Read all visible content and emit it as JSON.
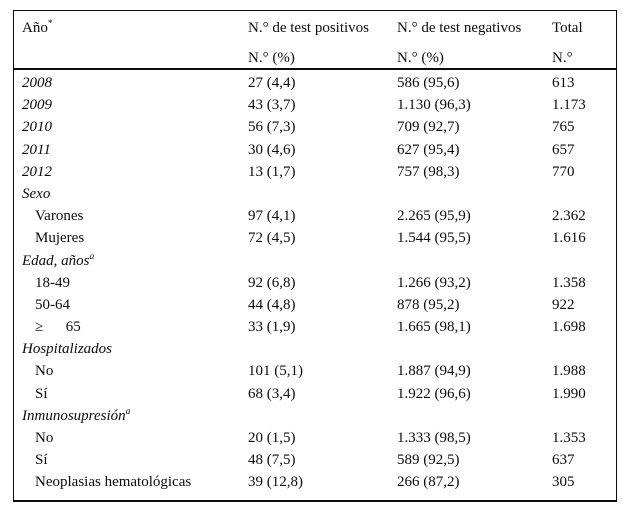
{
  "table": {
    "header": {
      "col1": {
        "line1": "Año",
        "sup": "*"
      },
      "col2": {
        "line1": "N.° de test positivos",
        "line2": "N.° (%)"
      },
      "col3": {
        "line1": "N.° de test negativos",
        "line2": "N.° (%)"
      },
      "col4": {
        "line1": "Total",
        "line2": "N.°"
      }
    },
    "rows": [
      {
        "label": "2008",
        "italic": true,
        "positives": "27 (4,4)",
        "negatives": "586 (95,6)",
        "total": "613"
      },
      {
        "label": "2009",
        "italic": true,
        "positives": "43 (3,7)",
        "negatives": "1.130 (96,3)",
        "total": "1.173"
      },
      {
        "label": "2010",
        "italic": true,
        "positives": "56 (7,3)",
        "negatives": "709 (92,7)",
        "total": "765"
      },
      {
        "label": "2011",
        "italic": true,
        "positives": "30 (4,6)",
        "negatives": "627 (95,4)",
        "total": "657"
      },
      {
        "label": "2012",
        "italic": true,
        "positives": "13 (1,7)",
        "negatives": "757 (98,3)",
        "total": "770"
      },
      {
        "label": "Sexo",
        "section": true
      },
      {
        "label": "Varones",
        "indent": true,
        "positives": "97 (4,1)",
        "negatives": "2.265 (95,9)",
        "total": "2.362"
      },
      {
        "label": "Mujeres",
        "indent": true,
        "positives": "72 (4,5)",
        "negatives": "1.544 (95,5)",
        "total": "1.616"
      },
      {
        "label": "Edad, años",
        "sup": "a",
        "section": true
      },
      {
        "label": "18-49",
        "indent": true,
        "positives": "92 (6,8)",
        "negatives": "1.266 (93,2)",
        "total": "1.358"
      },
      {
        "label": "50-64",
        "indent": true,
        "positives": "44 (4,8)",
        "negatives": "878 (95,2)",
        "total": "922"
      },
      {
        "label": "≥      65",
        "indent": true,
        "positives": "33 (1,9)",
        "negatives": "1.665 (98,1)",
        "total": "1.698"
      },
      {
        "label": "Hospitalizados",
        "section": true
      },
      {
        "label": "No",
        "indent": true,
        "positives": "101 (5,1)",
        "negatives": "1.887 (94,9)",
        "total": "1.988"
      },
      {
        "label": "Sí",
        "indent": true,
        "positives": "68 (3,4)",
        "negatives": "1.922 (96,6)",
        "total": "1.990"
      },
      {
        "label": "Inmunosupresión",
        "sup": "a",
        "section": true
      },
      {
        "label": "No",
        "indent": true,
        "positives": "20 (1,5)",
        "negatives": "1.333 (98,5)",
        "total": "1.353"
      },
      {
        "label": "Sí",
        "indent": true,
        "positives": "48 (7,5)",
        "negatives": "589 (92,5)",
        "total": "637"
      },
      {
        "label": "Neoplasias hematológicas",
        "indent": true,
        "positives": "39 (12,8)",
        "negatives": "266 (87,2)",
        "total": "305"
      }
    ],
    "colors": {
      "text": "#0c0c0c",
      "background": "#ffffff",
      "rule": "#0c0c0c"
    }
  }
}
